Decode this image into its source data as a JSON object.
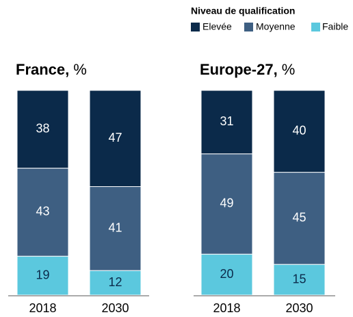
{
  "legend_title": "Niveau de qualification",
  "chart_data": [
    {
      "type": "stacked_bar",
      "title": "France,",
      "title_unit": "%",
      "categories": [
        "2018",
        "2030"
      ],
      "ylim": [
        0,
        100
      ],
      "series": [
        {
          "name": "Elevée",
          "color": "#0b2a4a",
          "values": [
            38,
            47
          ]
        },
        {
          "name": "Moyenne",
          "color": "#3e5f82",
          "values": [
            43,
            41
          ]
        },
        {
          "name": "Faible",
          "color": "#5bc8de",
          "values": [
            19,
            12
          ]
        }
      ]
    },
    {
      "type": "stacked_bar",
      "title": "Europe-27,",
      "title_unit": "%",
      "categories": [
        "2018",
        "2030"
      ],
      "ylim": [
        0,
        100
      ],
      "series": [
        {
          "name": "Elevée",
          "color": "#0b2a4a",
          "values": [
            31,
            40
          ]
        },
        {
          "name": "Moyenne",
          "color": "#3e5f82",
          "values": [
            49,
            45
          ]
        },
        {
          "name": "Faible",
          "color": "#5bc8de",
          "values": [
            20,
            15
          ]
        }
      ]
    }
  ]
}
